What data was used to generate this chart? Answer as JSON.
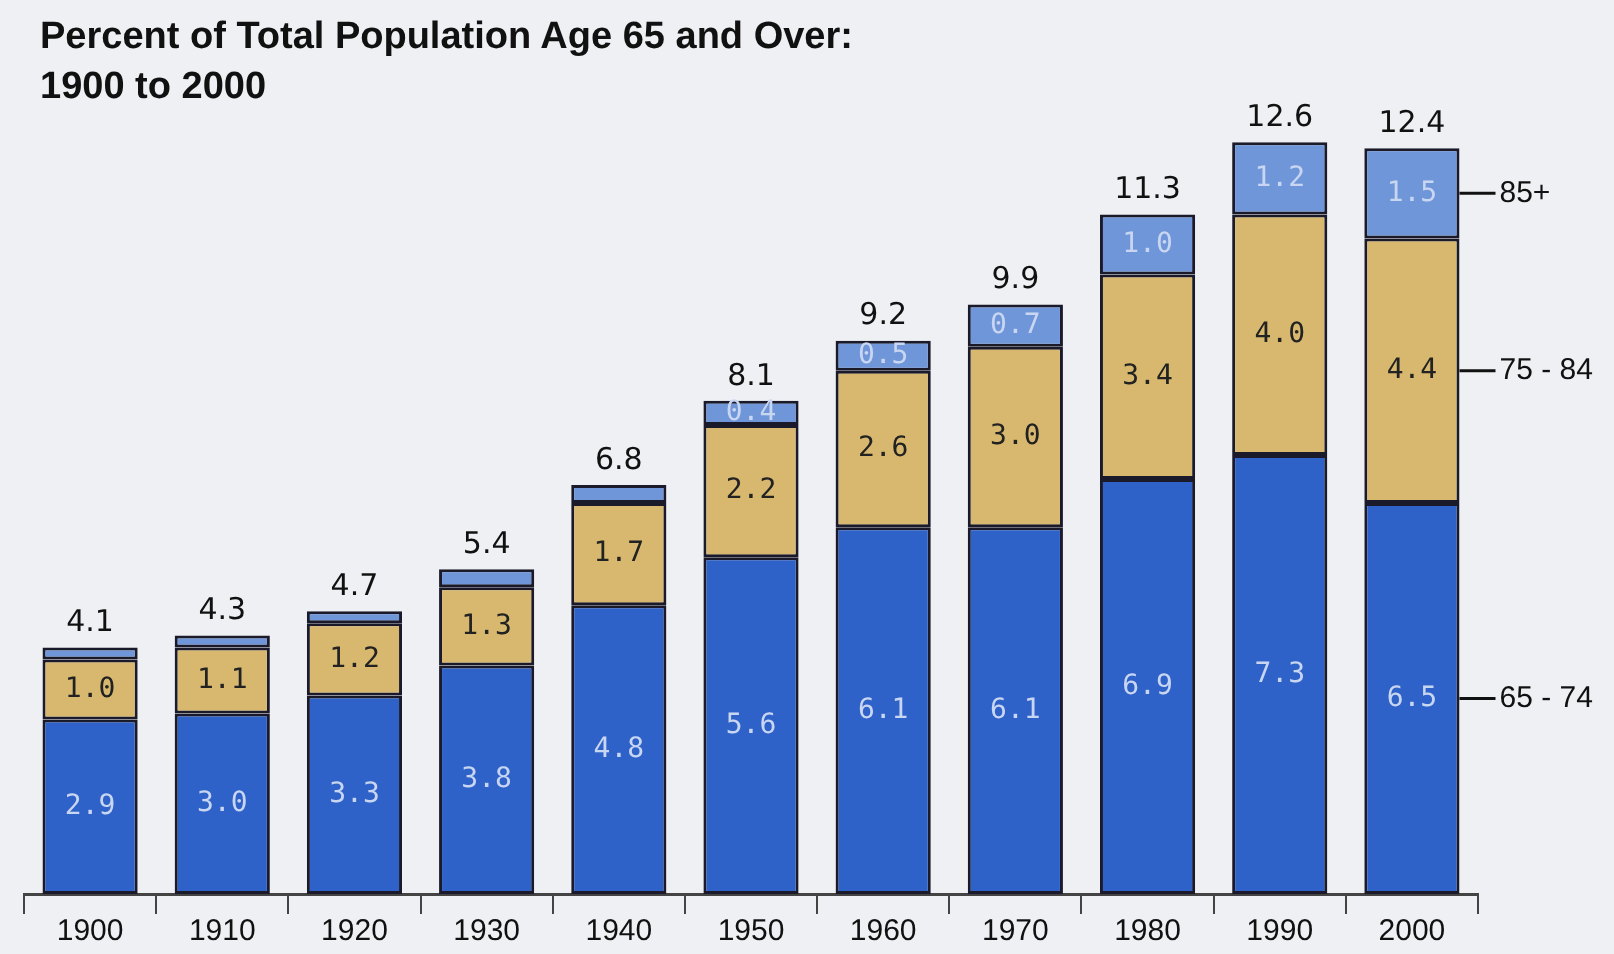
{
  "chart_data": {
    "type": "bar",
    "stacked": true,
    "title": "Percent of Total Population Age 65 and Over:\n1900 to 2000",
    "categories": [
      "1900",
      "1910",
      "1920",
      "1930",
      "1940",
      "1950",
      "1960",
      "1970",
      "1980",
      "1990",
      "2000"
    ],
    "series": [
      {
        "name": "65 - 74",
        "color": "#2f62c8",
        "values": [
          2.9,
          3.0,
          3.3,
          3.8,
          4.8,
          5.6,
          6.1,
          6.1,
          6.9,
          7.3,
          6.5
        ],
        "value_labels": [
          "2.9",
          "3.0",
          "3.3",
          "3.8",
          "4.8",
          "5.6",
          "6.1",
          "6.1",
          "6.9",
          "7.3",
          "6.5"
        ]
      },
      {
        "name": "75 - 84",
        "color": "#d8b86e",
        "values": [
          1.0,
          1.1,
          1.2,
          1.3,
          1.7,
          2.2,
          2.6,
          3.0,
          3.4,
          4.0,
          4.4
        ],
        "value_labels": [
          "1.0",
          "1.1",
          "1.2",
          "1.3",
          "1.7",
          "2.2",
          "2.6",
          "3.0",
          "3.4",
          "4.0",
          "4.4"
        ]
      },
      {
        "name": "85+",
        "color": "#6f96d8",
        "values": [
          0.2,
          0.2,
          0.2,
          0.3,
          0.3,
          0.4,
          0.5,
          0.7,
          1.0,
          1.2,
          1.5
        ],
        "value_labels": [
          null,
          null,
          null,
          null,
          null,
          "0.4",
          "0.5",
          "0.7",
          "1.0",
          "1.2",
          "1.5"
        ]
      }
    ],
    "totals": [
      "4.1",
      "4.3",
      "4.7",
      "5.4",
      "6.8",
      "8.1",
      "9.2",
      "9.9",
      "11.3",
      "12.6",
      "12.4"
    ],
    "grid": false,
    "legend": false
  }
}
